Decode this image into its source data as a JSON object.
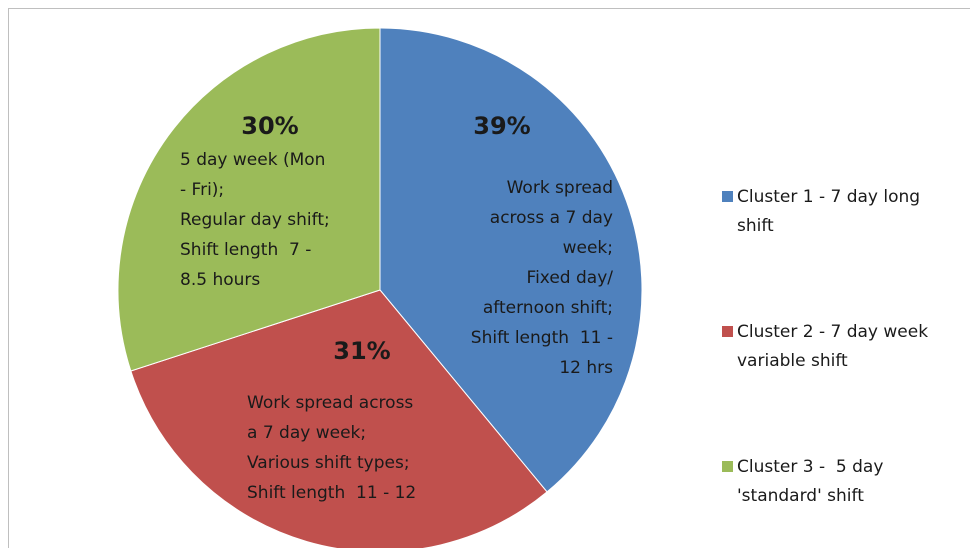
{
  "chart_data": {
    "type": "pie",
    "series": [
      {
        "name": "Cluster 1 - 7 day long shift",
        "color": "#4f81bd"
      },
      {
        "name": "Cluster 2 - 7 day week variable shift",
        "color": "#c0504d"
      },
      {
        "name": "Cluster 3 -  5 day 'standard' shift",
        "color": "#9bbb59"
      }
    ],
    "values": [
      39,
      31,
      30
    ],
    "value_labels": [
      "39%",
      "31%",
      "30%"
    ],
    "descriptions": [
      [
        "Work spread",
        "across a 7 day",
        "week;",
        "Fixed day/",
        "afternoon shift;",
        "Shift length  11 -",
        "12 hrs"
      ],
      [
        "Work spread across",
        "a 7 day week;",
        "Various shift types;",
        "Shift length  11 - 12"
      ],
      [
        "5 day week (Mon",
        "- Fri);",
        "Regular day shift;",
        "Shift length  7 -",
        "8.5 hours"
      ]
    ],
    "legend": "right"
  }
}
